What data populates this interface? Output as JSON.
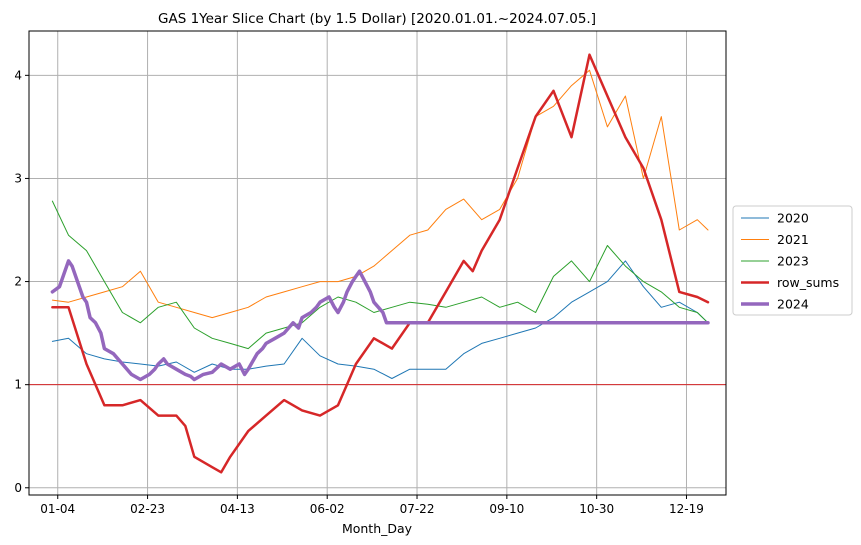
{
  "chart_data": {
    "type": "line",
    "title": "GAS 1Year Slice Chart (by 1.5 Dollar) [2020.01.01.~2024.07.05.]",
    "xlabel": "Month_Day",
    "ylabel": "",
    "x_ticks": [
      "01-04",
      "02-23",
      "04-13",
      "06-02",
      "07-22",
      "09-10",
      "10-30",
      "12-19"
    ],
    "x_tick_days": [
      4,
      54,
      104,
      154,
      204,
      254,
      304,
      354
    ],
    "y_ticks": [
      0,
      1,
      2,
      3,
      4
    ],
    "xlim": [
      -12,
      376
    ],
    "ylim": [
      -0.07,
      4.43
    ],
    "grid": true,
    "legend_position": "right-center",
    "reference_line": {
      "y": 1,
      "color": "#d62728"
    },
    "series": [
      {
        "name": "2020",
        "color": "#1f77b4",
        "width": 1,
        "x": [
          1,
          10,
          20,
          30,
          40,
          50,
          60,
          70,
          80,
          90,
          100,
          110,
          120,
          130,
          140,
          150,
          160,
          170,
          180,
          190,
          200,
          210,
          220,
          230,
          240,
          250,
          260,
          270,
          280,
          290,
          300,
          310,
          320,
          330,
          340,
          350,
          360,
          366
        ],
        "y": [
          1.42,
          1.45,
          1.3,
          1.25,
          1.22,
          1.2,
          1.18,
          1.22,
          1.12,
          1.2,
          1.15,
          1.15,
          1.18,
          1.2,
          1.45,
          1.28,
          1.2,
          1.18,
          1.15,
          1.06,
          1.15,
          1.15,
          1.15,
          1.3,
          1.4,
          1.45,
          1.5,
          1.55,
          1.65,
          1.8,
          1.9,
          2.0,
          2.2,
          1.95,
          1.75,
          1.8,
          1.7,
          1.6
        ]
      },
      {
        "name": "2021",
        "color": "#ff7f0e",
        "width": 1,
        "x": [
          1,
          10,
          20,
          30,
          40,
          50,
          60,
          70,
          80,
          90,
          100,
          110,
          120,
          130,
          140,
          150,
          160,
          170,
          180,
          190,
          200,
          210,
          220,
          230,
          240,
          250,
          260,
          270,
          280,
          290,
          300,
          310,
          320,
          330,
          340,
          350,
          360,
          366
        ],
        "y": [
          1.82,
          1.8,
          1.85,
          1.9,
          1.95,
          2.1,
          1.8,
          1.75,
          1.7,
          1.65,
          1.7,
          1.75,
          1.85,
          1.9,
          1.95,
          2.0,
          2.0,
          2.05,
          2.15,
          2.3,
          2.45,
          2.5,
          2.7,
          2.8,
          2.6,
          2.7,
          3.0,
          3.6,
          3.7,
          3.9,
          4.05,
          3.5,
          3.8,
          3.0,
          3.6,
          2.5,
          2.6,
          2.5
        ]
      },
      {
        "name": "2023",
        "color": "#2ca02c",
        "width": 1,
        "x": [
          1,
          10,
          20,
          30,
          40,
          50,
          60,
          70,
          80,
          90,
          100,
          110,
          120,
          130,
          140,
          150,
          160,
          170,
          180,
          190,
          200,
          210,
          220,
          230,
          240,
          250,
          260,
          270,
          280,
          290,
          300,
          310,
          320,
          330,
          340,
          350,
          360,
          366
        ],
        "y": [
          2.78,
          2.45,
          2.3,
          2.0,
          1.7,
          1.6,
          1.75,
          1.8,
          1.55,
          1.45,
          1.4,
          1.35,
          1.5,
          1.55,
          1.6,
          1.75,
          1.85,
          1.8,
          1.7,
          1.75,
          1.8,
          1.78,
          1.75,
          1.8,
          1.85,
          1.75,
          1.8,
          1.7,
          2.05,
          2.2,
          2.0,
          2.35,
          2.15,
          2.0,
          1.9,
          1.75,
          1.7,
          1.6
        ]
      },
      {
        "name": "row_sums",
        "color": "#d62728",
        "width": 2.5,
        "x": [
          1,
          10,
          20,
          25,
          30,
          40,
          50,
          60,
          70,
          75,
          80,
          90,
          95,
          100,
          110,
          120,
          130,
          140,
          150,
          160,
          170,
          180,
          190,
          200,
          210,
          220,
          230,
          235,
          240,
          250,
          260,
          270,
          280,
          290,
          300,
          310,
          320,
          330,
          340,
          350,
          360,
          366
        ],
        "y": [
          1.75,
          1.75,
          1.2,
          1.0,
          0.8,
          0.8,
          0.85,
          0.7,
          0.7,
          0.6,
          0.3,
          0.2,
          0.15,
          0.3,
          0.55,
          0.7,
          0.85,
          0.75,
          0.7,
          0.8,
          1.2,
          1.45,
          1.35,
          1.6,
          1.6,
          1.9,
          2.2,
          2.1,
          2.3,
          2.6,
          3.1,
          3.6,
          3.85,
          3.4,
          4.2,
          3.8,
          3.4,
          3.1,
          2.6,
          1.9,
          1.85,
          1.8
        ]
      },
      {
        "name": "2024",
        "color": "#9467bd",
        "width": 3.5,
        "x": [
          1,
          5,
          8,
          10,
          12,
          15,
          18,
          20,
          22,
          25,
          28,
          30,
          35,
          40,
          45,
          50,
          55,
          58,
          60,
          63,
          65,
          70,
          75,
          78,
          80,
          85,
          90,
          95,
          100,
          105,
          108,
          110,
          115,
          118,
          120,
          125,
          130,
          135,
          138,
          140,
          145,
          148,
          150,
          155,
          158,
          160,
          163,
          165,
          168,
          170,
          172,
          175,
          178,
          180,
          185,
          187,
          366
        ],
        "y": [
          1.9,
          1.95,
          2.1,
          2.2,
          2.15,
          2.0,
          1.85,
          1.8,
          1.65,
          1.6,
          1.5,
          1.35,
          1.3,
          1.2,
          1.1,
          1.05,
          1.1,
          1.15,
          1.2,
          1.25,
          1.2,
          1.15,
          1.1,
          1.08,
          1.05,
          1.1,
          1.12,
          1.2,
          1.15,
          1.2,
          1.1,
          1.15,
          1.3,
          1.35,
          1.4,
          1.45,
          1.5,
          1.6,
          1.55,
          1.65,
          1.7,
          1.75,
          1.8,
          1.85,
          1.75,
          1.7,
          1.8,
          1.9,
          2.0,
          2.05,
          2.1,
          2.0,
          1.9,
          1.8,
          1.7,
          1.6,
          1.6
        ]
      }
    ]
  }
}
